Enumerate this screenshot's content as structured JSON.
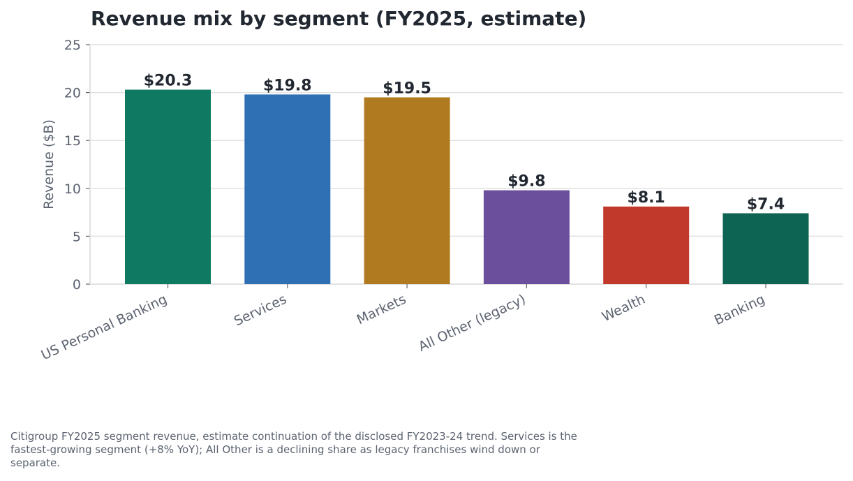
{
  "chart_data": {
    "type": "bar",
    "title": "Revenue mix by segment (FY2025, estimate)",
    "xlabel": "",
    "ylabel": "Revenue ($B)",
    "ylim": [
      0,
      25
    ],
    "yticks": [
      0,
      5,
      10,
      15,
      20,
      25
    ],
    "categories": [
      "US Personal Banking",
      "Services",
      "Markets",
      "All Other (legacy)",
      "Wealth",
      "Banking"
    ],
    "values": [
      20.3,
      19.8,
      19.5,
      9.8,
      8.1,
      7.4
    ],
    "data_labels": [
      "$20.3",
      "$19.8",
      "$19.5",
      "$9.8",
      "$8.1",
      "$7.4"
    ],
    "colors": [
      "#0f7a61",
      "#2f70b4",
      "#b07b20",
      "#6b4e9c",
      "#c0392b",
      "#0d6452"
    ],
    "grid": "horizontal",
    "legend": "none"
  },
  "caption": "Citigroup FY2025 segment revenue, estimate continuation of the disclosed FY2023-24 trend. Services is the fastest-growing segment (+8% YoY); All Other is a declining share as legacy franchises wind down or separate."
}
